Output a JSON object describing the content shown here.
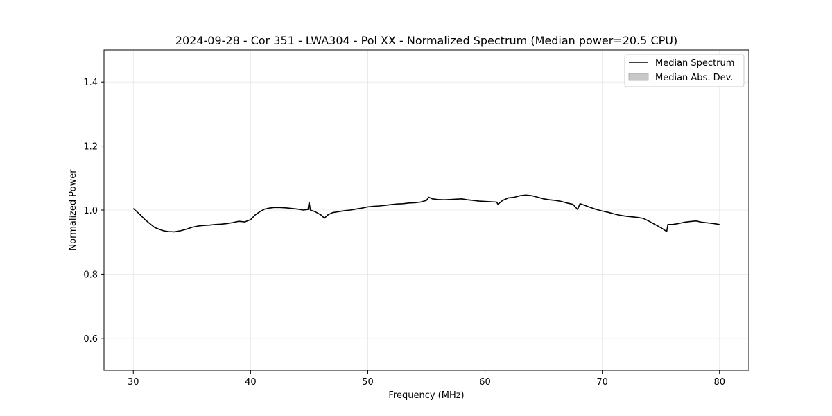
{
  "chart_data": {
    "type": "line",
    "title": "2024-09-28 - Cor 351 - LWA304 - Pol XX - Normalized Spectrum (Median power=20.5 CPU)",
    "xlabel": "Frequency (MHz)",
    "ylabel": "Normalized Power",
    "xlim": [
      27.5,
      82.5
    ],
    "ylim": [
      0.5,
      1.5
    ],
    "xticks": [
      30,
      40,
      50,
      60,
      70,
      80
    ],
    "yticks": [
      0.6,
      0.8,
      1.0,
      1.2,
      1.4
    ],
    "xtick_labels": [
      "30",
      "40",
      "50",
      "60",
      "70",
      "80"
    ],
    "ytick_labels": [
      "0.6",
      "0.8",
      "1.0",
      "1.2",
      "1.4"
    ],
    "grid": true,
    "legend_position": "top-right",
    "legend": [
      {
        "label": "Median Spectrum",
        "kind": "line",
        "color": "#000000"
      },
      {
        "label": "Median Abs. Dev.",
        "kind": "patch",
        "color": "#c8c8c8"
      }
    ],
    "series": [
      {
        "name": "Median Spectrum",
        "color": "#000000",
        "points": [
          [
            30.0,
            1.005
          ],
          [
            30.3,
            0.995
          ],
          [
            30.6,
            0.985
          ],
          [
            31.0,
            0.97
          ],
          [
            31.4,
            0.958
          ],
          [
            31.8,
            0.946
          ],
          [
            32.2,
            0.94
          ],
          [
            32.6,
            0.935
          ],
          [
            33.0,
            0.933
          ],
          [
            33.5,
            0.932
          ],
          [
            34.0,
            0.935
          ],
          [
            34.5,
            0.94
          ],
          [
            35.0,
            0.946
          ],
          [
            35.5,
            0.95
          ],
          [
            36.0,
            0.952
          ],
          [
            36.5,
            0.953
          ],
          [
            37.0,
            0.955
          ],
          [
            37.5,
            0.956
          ],
          [
            38.0,
            0.958
          ],
          [
            38.5,
            0.961
          ],
          [
            39.0,
            0.965
          ],
          [
            39.5,
            0.963
          ],
          [
            40.0,
            0.97
          ],
          [
            40.4,
            0.985
          ],
          [
            40.8,
            0.995
          ],
          [
            41.2,
            1.003
          ],
          [
            41.6,
            1.006
          ],
          [
            42.0,
            1.008
          ],
          [
            42.5,
            1.008
          ],
          [
            43.0,
            1.007
          ],
          [
            43.5,
            1.005
          ],
          [
            44.0,
            1.003
          ],
          [
            44.5,
            1.0
          ],
          [
            44.9,
            1.002
          ],
          [
            45.0,
            1.025
          ],
          [
            45.1,
            1.0
          ],
          [
            45.5,
            0.995
          ],
          [
            46.0,
            0.985
          ],
          [
            46.3,
            0.975
          ],
          [
            46.6,
            0.985
          ],
          [
            47.0,
            0.992
          ],
          [
            47.5,
            0.995
          ],
          [
            48.0,
            0.998
          ],
          [
            48.5,
            1.0
          ],
          [
            49.0,
            1.003
          ],
          [
            49.5,
            1.006
          ],
          [
            50.0,
            1.01
          ],
          [
            50.5,
            1.012
          ],
          [
            51.0,
            1.013
          ],
          [
            51.5,
            1.015
          ],
          [
            52.0,
            1.017
          ],
          [
            52.5,
            1.019
          ],
          [
            53.0,
            1.02
          ],
          [
            53.5,
            1.022
          ],
          [
            54.0,
            1.023
          ],
          [
            54.5,
            1.025
          ],
          [
            55.0,
            1.03
          ],
          [
            55.2,
            1.04
          ],
          [
            55.5,
            1.035
          ],
          [
            56.0,
            1.033
          ],
          [
            56.5,
            1.032
          ],
          [
            57.0,
            1.033
          ],
          [
            57.5,
            1.034
          ],
          [
            58.0,
            1.035
          ],
          [
            58.5,
            1.032
          ],
          [
            59.0,
            1.03
          ],
          [
            59.5,
            1.028
          ],
          [
            60.0,
            1.027
          ],
          [
            60.5,
            1.026
          ],
          [
            61.0,
            1.025
          ],
          [
            61.1,
            1.018
          ],
          [
            61.5,
            1.03
          ],
          [
            62.0,
            1.038
          ],
          [
            62.5,
            1.04
          ],
          [
            63.0,
            1.045
          ],
          [
            63.5,
            1.047
          ],
          [
            64.0,
            1.045
          ],
          [
            64.5,
            1.04
          ],
          [
            65.0,
            1.035
          ],
          [
            65.5,
            1.032
          ],
          [
            66.0,
            1.03
          ],
          [
            66.5,
            1.027
          ],
          [
            67.0,
            1.022
          ],
          [
            67.5,
            1.018
          ],
          [
            67.9,
            1.002
          ],
          [
            68.1,
            1.02
          ],
          [
            68.5,
            1.015
          ],
          [
            69.0,
            1.008
          ],
          [
            69.5,
            1.002
          ],
          [
            70.0,
            0.997
          ],
          [
            70.5,
            0.993
          ],
          [
            71.0,
            0.988
          ],
          [
            71.5,
            0.984
          ],
          [
            72.0,
            0.981
          ],
          [
            72.5,
            0.979
          ],
          [
            73.0,
            0.977
          ],
          [
            73.5,
            0.974
          ],
          [
            74.0,
            0.965
          ],
          [
            74.5,
            0.955
          ],
          [
            75.0,
            0.945
          ],
          [
            75.5,
            0.933
          ],
          [
            75.6,
            0.955
          ],
          [
            76.0,
            0.955
          ],
          [
            76.5,
            0.958
          ],
          [
            77.0,
            0.962
          ],
          [
            77.5,
            0.964
          ],
          [
            78.0,
            0.966
          ],
          [
            78.5,
            0.962
          ],
          [
            79.0,
            0.96
          ],
          [
            79.5,
            0.958
          ],
          [
            80.0,
            0.955
          ]
        ]
      }
    ]
  }
}
